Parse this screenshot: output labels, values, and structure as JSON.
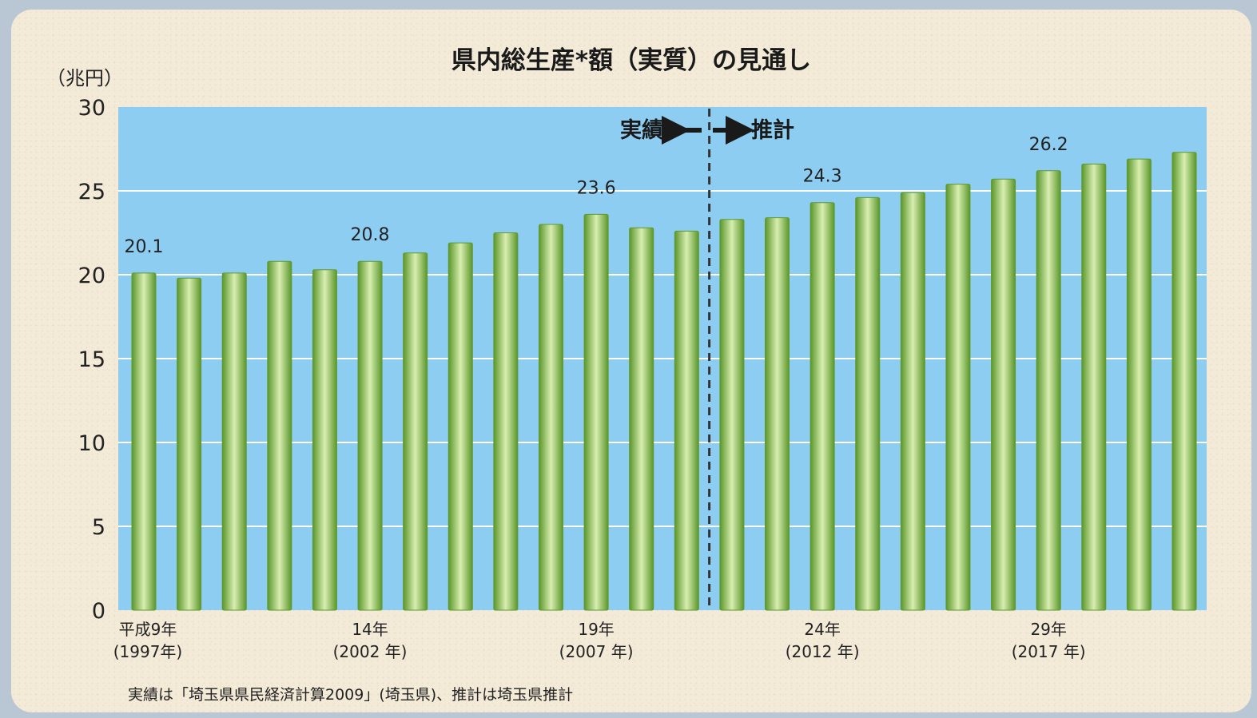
{
  "chart_data": {
    "type": "bar",
    "title": "県内総生産*額（実質）の見通し",
    "unit_label": "（兆円）",
    "ylim": [
      0,
      30
    ],
    "yticks": [
      0,
      5,
      10,
      15,
      20,
      25,
      30
    ],
    "grid": true,
    "categories": [
      "1997",
      "1998",
      "1999",
      "2000",
      "2001",
      "2002",
      "2003",
      "2004",
      "2005",
      "2006",
      "2007",
      "2008",
      "2009",
      "2010",
      "2011",
      "2012",
      "2013",
      "2014",
      "2015",
      "2016",
      "2017",
      "2018",
      "2019",
      "2020"
    ],
    "values": [
      20.1,
      19.8,
      20.1,
      20.8,
      20.3,
      20.8,
      21.3,
      21.9,
      22.5,
      23.0,
      23.6,
      22.8,
      22.6,
      23.3,
      23.4,
      24.3,
      24.6,
      24.9,
      25.4,
      25.7,
      26.2,
      26.6,
      26.9,
      27.3
    ],
    "data_labels": [
      {
        "index": 0,
        "text": "20.1"
      },
      {
        "index": 5,
        "text": "20.8"
      },
      {
        "index": 10,
        "text": "23.6"
      },
      {
        "index": 15,
        "text": "24.3"
      },
      {
        "index": 20,
        "text": "26.2"
      }
    ],
    "x_tick_labels": [
      {
        "index": 0,
        "line1": "平成9年",
        "line2": "(1997年)"
      },
      {
        "index": 5,
        "line1": "14年",
        "line2": "(2002 年)"
      },
      {
        "index": 10,
        "line1": "19年",
        "line2": "(2007 年)"
      },
      {
        "index": 15,
        "line1": "24年",
        "line2": "(2012 年)"
      },
      {
        "index": 20,
        "line1": "29年",
        "line2": "(2017 年)"
      }
    ],
    "divider_after_index": 12,
    "phase_labels": {
      "actual": "実績",
      "estimate": "推計"
    },
    "source_note": "実績は「埼玉県県民経済計算2009」(埼玉県)、推計は埼玉県推計",
    "colors": {
      "plot_background": "#8dcdf1",
      "bar_edge": "#5e9a2c",
      "bar_mid": "#d6ecad",
      "gridline": "#ffffff",
      "divider": "#333333"
    }
  }
}
